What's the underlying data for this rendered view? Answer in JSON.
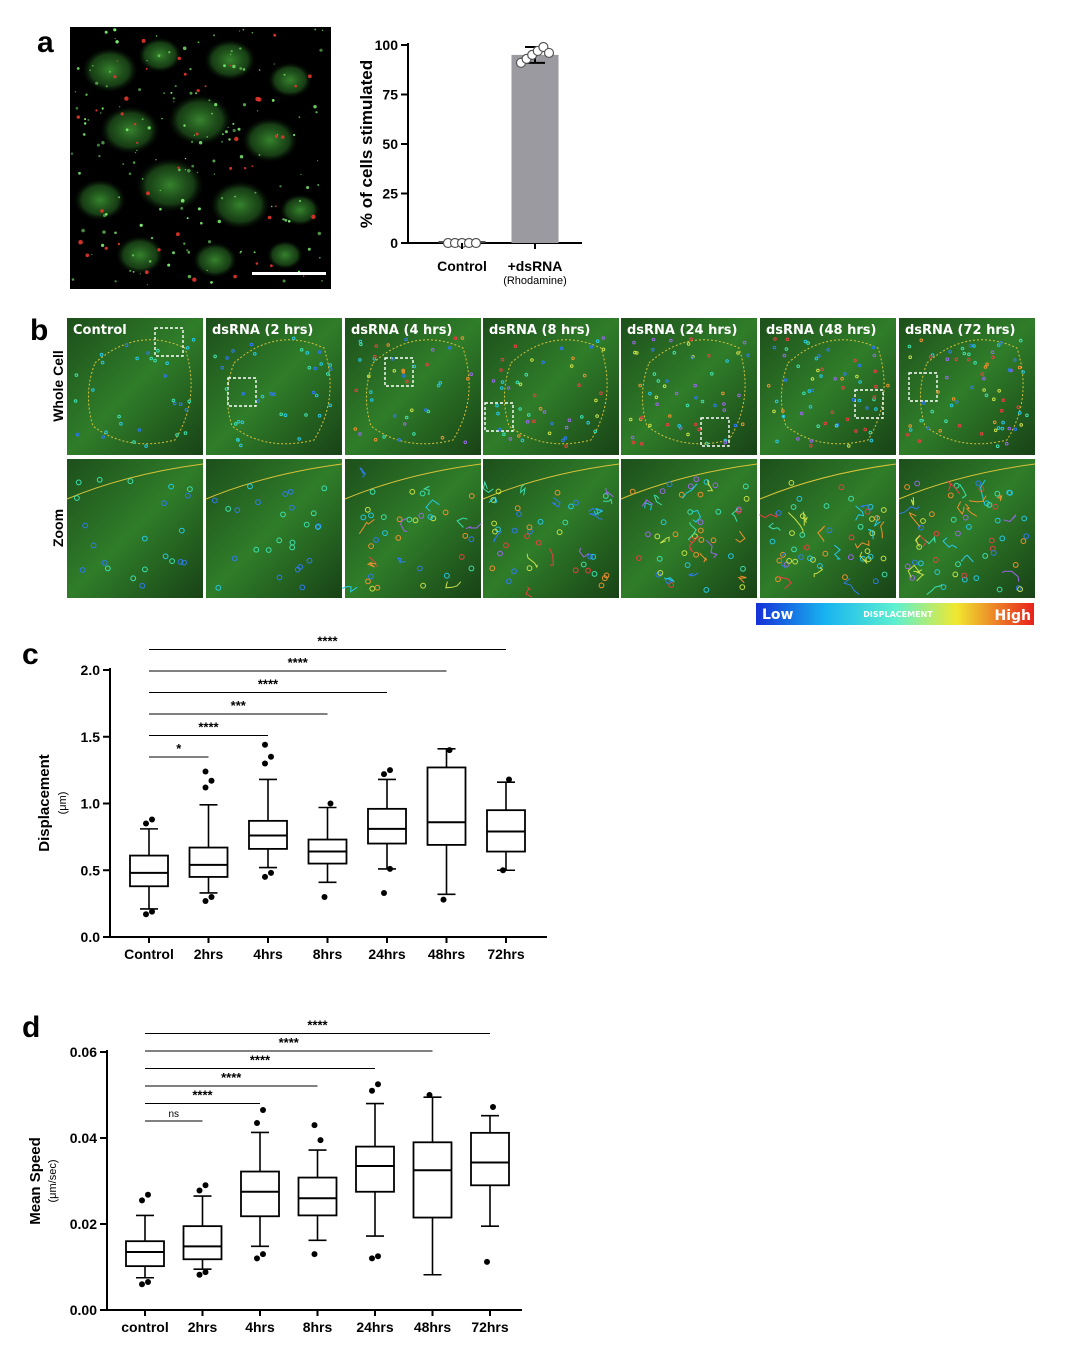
{
  "panels": {
    "a": "a",
    "b": "b",
    "c": "c",
    "d": "d"
  },
  "colors": {
    "cell_green": "#2f8f2a",
    "puncta_red": "#e3352b",
    "bar_gray": "#9a9aa0",
    "trace_yellow": "#d8c23a"
  },
  "panel_b": {
    "row_labels": [
      "Whole Cell",
      "Zoom"
    ],
    "column_labels": [
      "Control",
      "dsRNA (2 hrs)",
      "dsRNA (4 hrs)",
      "dsRNA (8 hrs)",
      "dsRNA (24 hrs)",
      "dsRNA (48 hrs)",
      "dsRNA (72 hrs)"
    ],
    "colorbar": {
      "low": "Low",
      "mid": "DISPLACEMENT",
      "high": "High"
    }
  },
  "chart_data": [
    {
      "id": "a",
      "type": "bar",
      "categories": [
        "Control",
        "+dsRNA"
      ],
      "category_sublabels": [
        "",
        "(Rhodamine)"
      ],
      "values": [
        1,
        95
      ],
      "errors": [
        0.5,
        4
      ],
      "points": [
        [
          0,
          0,
          0,
          0,
          0
        ],
        [
          91,
          93,
          95,
          97,
          99,
          96
        ]
      ],
      "ylabel": "% of cells stimulated",
      "ylim": [
        0,
        100
      ],
      "yticks": [
        "0",
        "25",
        "50",
        "75",
        "100"
      ]
    },
    {
      "id": "c",
      "type": "box",
      "categories": [
        "Control",
        "2hrs",
        "4hrs",
        "8hrs",
        "24hrs",
        "48hrs",
        "72hrs"
      ],
      "ylabel": "Displacement",
      "yunit": "(μm)",
      "ylim": [
        0,
        2.0
      ],
      "yticks": [
        "0.0",
        "0.5",
        "1.0",
        "1.5",
        "2.0"
      ],
      "boxes": [
        {
          "whisker_low": 0.21,
          "q1": 0.38,
          "median": 0.48,
          "q3": 0.61,
          "whisker_high": 0.81,
          "outliers": [
            0.17,
            0.19,
            0.85,
            0.88
          ]
        },
        {
          "whisker_low": 0.33,
          "q1": 0.45,
          "median": 0.54,
          "q3": 0.67,
          "whisker_high": 0.99,
          "outliers": [
            0.27,
            0.3,
            1.12,
            1.17,
            1.24
          ]
        },
        {
          "whisker_low": 0.52,
          "q1": 0.66,
          "median": 0.76,
          "q3": 0.87,
          "whisker_high": 1.18,
          "outliers": [
            0.45,
            0.48,
            1.3,
            1.35,
            1.44
          ]
        },
        {
          "whisker_low": 0.41,
          "q1": 0.55,
          "median": 0.64,
          "q3": 0.73,
          "whisker_high": 0.97,
          "outliers": [
            0.3,
            1.0
          ]
        },
        {
          "whisker_low": 0.51,
          "q1": 0.7,
          "median": 0.81,
          "q3": 0.96,
          "whisker_high": 1.18,
          "outliers": [
            0.33,
            0.51,
            1.22,
            1.25
          ]
        },
        {
          "whisker_low": 0.32,
          "q1": 0.69,
          "median": 0.86,
          "q3": 1.27,
          "whisker_high": 1.41,
          "outliers": [
            0.28,
            1.4
          ]
        },
        {
          "whisker_low": 0.5,
          "q1": 0.64,
          "median": 0.79,
          "q3": 0.95,
          "whisker_high": 1.16,
          "outliers": [
            0.5,
            1.18
          ]
        }
      ],
      "comparisons": [
        {
          "from": 0,
          "to": 1,
          "label": "*"
        },
        {
          "from": 0,
          "to": 2,
          "label": "****"
        },
        {
          "from": 0,
          "to": 3,
          "label": "***"
        },
        {
          "from": 0,
          "to": 4,
          "label": "****"
        },
        {
          "from": 0,
          "to": 5,
          "label": "****"
        },
        {
          "from": 0,
          "to": 6,
          "label": "****"
        }
      ]
    },
    {
      "id": "d",
      "type": "box",
      "categories": [
        "control",
        "2hrs",
        "4hrs",
        "8hrs",
        "24hrs",
        "48hrs",
        "72hrs"
      ],
      "ylabel": "Mean Speed",
      "yunit": "(μm/sec)",
      "ylim": [
        0,
        0.06
      ],
      "yticks": [
        "0.00",
        "0.02",
        "0.04",
        "0.06"
      ],
      "boxes": [
        {
          "whisker_low": 0.0075,
          "q1": 0.0102,
          "median": 0.0135,
          "q3": 0.016,
          "whisker_high": 0.022,
          "outliers": [
            0.006,
            0.0065,
            0.0255,
            0.0268
          ]
        },
        {
          "whisker_low": 0.0095,
          "q1": 0.0118,
          "median": 0.0148,
          "q3": 0.0195,
          "whisker_high": 0.0265,
          "outliers": [
            0.0082,
            0.0088,
            0.0278,
            0.029
          ]
        },
        {
          "whisker_low": 0.0148,
          "q1": 0.0218,
          "median": 0.0275,
          "q3": 0.0322,
          "whisker_high": 0.0413,
          "outliers": [
            0.012,
            0.013,
            0.0435,
            0.0465
          ]
        },
        {
          "whisker_low": 0.0162,
          "q1": 0.022,
          "median": 0.026,
          "q3": 0.0308,
          "whisker_high": 0.0372,
          "outliers": [
            0.013,
            0.0395,
            0.043
          ]
        },
        {
          "whisker_low": 0.0172,
          "q1": 0.0275,
          "median": 0.0335,
          "q3": 0.038,
          "whisker_high": 0.048,
          "outliers": [
            0.012,
            0.0125,
            0.051,
            0.0525
          ]
        },
        {
          "whisker_low": 0.0082,
          "q1": 0.0215,
          "median": 0.0325,
          "q3": 0.039,
          "whisker_high": 0.0495,
          "outliers": [
            0.05
          ]
        },
        {
          "whisker_low": 0.0195,
          "q1": 0.029,
          "median": 0.0343,
          "q3": 0.0412,
          "whisker_high": 0.0452,
          "outliers": [
            0.0112,
            0.0472
          ]
        }
      ],
      "comparisons": [
        {
          "from": 0,
          "to": 1,
          "label": "ns"
        },
        {
          "from": 0,
          "to": 2,
          "label": "****"
        },
        {
          "from": 0,
          "to": 3,
          "label": "****"
        },
        {
          "from": 0,
          "to": 4,
          "label": "****"
        },
        {
          "from": 0,
          "to": 5,
          "label": "****"
        },
        {
          "from": 0,
          "to": 6,
          "label": "****"
        }
      ]
    }
  ]
}
